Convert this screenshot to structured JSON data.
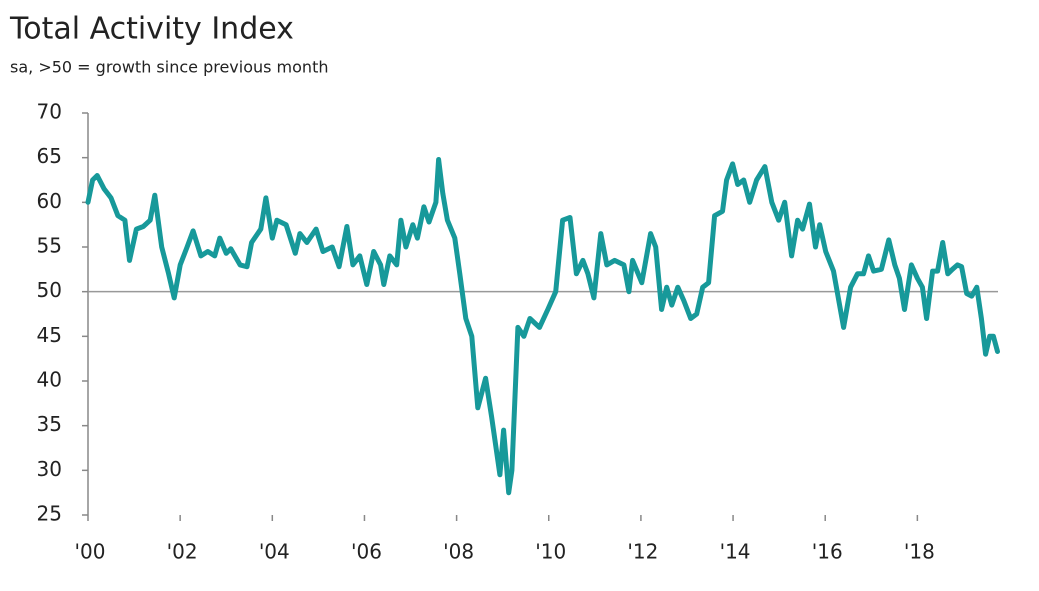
{
  "chart_data": {
    "type": "line",
    "title": "Total Activity Index",
    "subtitle": "sa, >50 = growth since previous month",
    "color": "#17999a",
    "reference_line": 50,
    "xlim": [
      2000,
      2019.75
    ],
    "ylim": [
      25,
      70
    ],
    "yticks": [
      25,
      30,
      35,
      40,
      45,
      50,
      55,
      60,
      65,
      70
    ],
    "xticks": [
      {
        "value": 2000,
        "label": "'00"
      },
      {
        "value": 2002,
        "label": "'02"
      },
      {
        "value": 2004,
        "label": "'04"
      },
      {
        "value": 2006,
        "label": "'06"
      },
      {
        "value": 2008,
        "label": "'08"
      },
      {
        "value": 2010,
        "label": "'10"
      },
      {
        "value": 2012,
        "label": "'12"
      },
      {
        "value": 2014,
        "label": "'14"
      },
      {
        "value": 2016,
        "label": "'16"
      },
      {
        "value": 2018,
        "label": "'18"
      }
    ],
    "x": [
      2000.0,
      2000.1,
      2000.2,
      2000.35,
      2000.5,
      2000.65,
      2000.8,
      2000.9,
      2001.05,
      2001.2,
      2001.35,
      2001.45,
      2001.6,
      2001.75,
      2001.87,
      2002.0,
      2002.15,
      2002.28,
      2002.45,
      2002.6,
      2002.75,
      2002.86,
      2003.0,
      2003.1,
      2003.3,
      2003.45,
      2003.55,
      2003.75,
      2003.86,
      2004.0,
      2004.1,
      2004.3,
      2004.5,
      2004.6,
      2004.75,
      2004.95,
      2005.1,
      2005.3,
      2005.45,
      2005.62,
      2005.75,
      2005.9,
      2006.05,
      2006.2,
      2006.35,
      2006.42,
      2006.55,
      2006.7,
      2006.79,
      2006.9,
      2007.05,
      2007.15,
      2007.29,
      2007.4,
      2007.55,
      2007.61,
      2007.7,
      2007.8,
      2007.96,
      2008.07,
      2008.2,
      2008.33,
      2008.46,
      2008.63,
      2008.76,
      2008.94,
      2009.02,
      2009.13,
      2009.2,
      2009.33,
      2009.46,
      2009.59,
      2009.8,
      2009.98,
      2010.15,
      2010.3,
      2010.46,
      2010.6,
      2010.74,
      2010.85,
      2010.98,
      2011.13,
      2011.26,
      2011.43,
      2011.63,
      2011.74,
      2011.82,
      2012.02,
      2012.21,
      2012.32,
      2012.45,
      2012.56,
      2012.67,
      2012.8,
      2012.93,
      2013.08,
      2013.21,
      2013.34,
      2013.47,
      2013.6,
      2013.77,
      2013.86,
      2013.99,
      2014.1,
      2014.23,
      2014.36,
      2014.51,
      2014.69,
      2014.84,
      2014.99,
      2015.12,
      2015.27,
      2015.4,
      2015.51,
      2015.66,
      2015.79,
      2015.88,
      2016.01,
      2016.18,
      2016.4,
      2016.55,
      2016.7,
      2016.83,
      2016.94,
      2017.05,
      2017.22,
      2017.38,
      2017.51,
      2017.61,
      2017.72,
      2017.87,
      2018.0,
      2018.11,
      2018.2,
      2018.33,
      2018.44,
      2018.55,
      2018.66,
      2018.76,
      2018.87,
      2018.96,
      2019.07,
      2019.18,
      2019.29,
      2019.39,
      2019.48,
      2019.57,
      2019.65,
      2019.74
    ],
    "values": [
      60,
      62.5,
      63,
      61.5,
      60.5,
      58.5,
      58,
      53.5,
      57,
      57.3,
      58,
      60.8,
      55,
      52,
      49.3,
      53,
      55,
      56.8,
      54,
      54.5,
      54,
      56,
      54.3,
      54.8,
      53,
      52.8,
      55.5,
      57,
      60.5,
      56,
      58,
      57.5,
      54.3,
      56.5,
      55.5,
      57,
      54.5,
      55,
      52.8,
      57.3,
      53,
      54,
      50.8,
      54.5,
      53,
      50.8,
      54,
      53,
      58,
      55,
      57.5,
      56,
      59.5,
      57.8,
      60,
      64.8,
      61,
      58,
      56,
      52,
      47,
      45,
      37,
      40.3,
      36,
      29.5,
      34.5,
      27.5,
      30,
      46,
      45,
      47,
      46,
      48,
      50,
      58,
      58.3,
      52,
      53.5,
      52,
      49.3,
      56.5,
      53,
      53.5,
      53,
      50,
      53.5,
      51,
      56.5,
      55,
      48,
      50.5,
      48.5,
      50.5,
      49,
      47,
      47.5,
      50.5,
      51,
      58.5,
      59,
      62.5,
      64.3,
      62,
      62.5,
      60,
      62.5,
      64,
      60,
      58,
      60,
      54,
      58,
      57,
      59.8,
      55,
      57.5,
      54.5,
      52.3,
      46,
      50.5,
      52,
      52,
      54,
      52.3,
      52.5,
      55.8,
      53,
      51.5,
      48,
      53,
      51.5,
      50.5,
      47,
      52.3,
      52.3,
      55.5,
      52,
      52.5,
      53,
      52.8,
      49.8,
      49.5,
      50.5,
      47,
      43,
      45,
      45,
      43.3
    ]
  }
}
